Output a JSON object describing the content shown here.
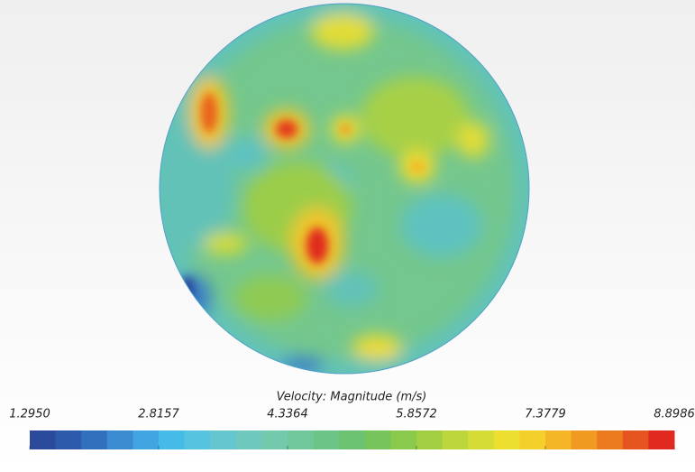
{
  "chart_data": {
    "type": "colorbar",
    "title": "Velocity: Magnitude (m/s)",
    "zlim": [
      1.295,
      8.8986
    ],
    "zticks": [
      {
        "value": 1.295,
        "label": "1.2950"
      },
      {
        "value": 2.8157,
        "label": "2.8157"
      },
      {
        "value": 4.3364,
        "label": "4.3364"
      },
      {
        "value": 5.8572,
        "label": "5.8572"
      },
      {
        "value": 7.3779,
        "label": "7.3779"
      },
      {
        "value": 8.8986,
        "label": "8.8986"
      }
    ],
    "colors": [
      "#2b4a9c",
      "#2e5aab",
      "#3170bd",
      "#3b8bd0",
      "#40a5e0",
      "#45bce8",
      "#56c3e0",
      "#66c6cf",
      "#6ec8bd",
      "#72c9ac",
      "#70c79a",
      "#6cc486",
      "#6bc270",
      "#76c45b",
      "#8ac94c",
      "#a2cf42",
      "#bdd63b",
      "#d6dc36",
      "#ecdf30",
      "#f5cf2a",
      "#f4b526",
      "#f19a22",
      "#ec7b20",
      "#e6541f",
      "#e02a1f"
    ]
  }
}
